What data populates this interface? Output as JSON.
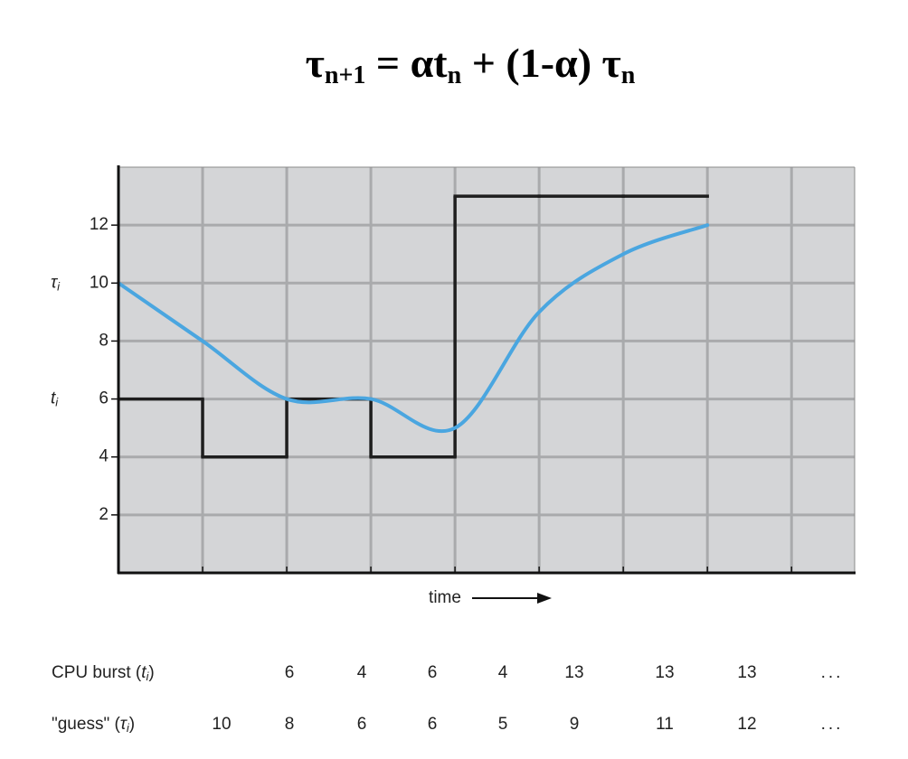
{
  "title": [
    {
      "text": "τ",
      "sub": "n+1"
    },
    {
      "text": " =  αt",
      "sub": "n"
    },
    {
      "text": " + (1-α)  τ",
      "sub": "n"
    }
  ],
  "chart_data": {
    "type": "line",
    "x_label": "time",
    "xlim": [
      0,
      8.75
    ],
    "ylim": [
      0,
      14
    ],
    "xticks": [
      0,
      1,
      2,
      3,
      4,
      5,
      6,
      7,
      8
    ],
    "yticks": [
      2,
      4,
      6,
      8,
      10,
      12
    ],
    "grid": true,
    "series": [
      {
        "name": {
          "pre": "CPU burst (",
          "var": "t",
          "sub": "i",
          "post": ")"
        },
        "color": "#1e1e1e",
        "style": "step",
        "x": [
          0,
          1,
          2,
          3,
          4,
          5,
          6
        ],
        "values": [
          6,
          4,
          6,
          4,
          13,
          13,
          13
        ]
      },
      {
        "name": {
          "pre": "\"guess\" (",
          "var": "τ",
          "sub": "i",
          "post": ")"
        },
        "color": "#4aa6e0",
        "style": "smooth",
        "x": [
          0,
          1,
          2,
          3,
          4,
          5,
          6,
          7
        ],
        "values": [
          10,
          8,
          6,
          6,
          5,
          9,
          11,
          12
        ]
      }
    ]
  },
  "table": {
    "ellipsis": "..."
  }
}
